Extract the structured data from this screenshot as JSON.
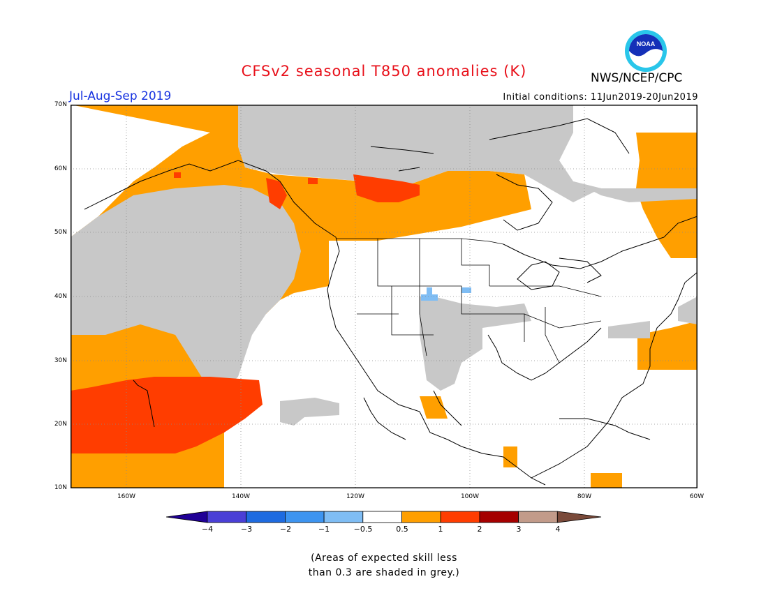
{
  "title": "CFSv2 seasonal T850 anomalies (K)",
  "agency": "NWS/NCEP/CPC",
  "logo_text": "NOAA",
  "season": "Jul-Aug-Sep 2019",
  "initial_conditions": "Initial conditions: 11Jun2019-20Jun2019",
  "lat_labels": [
    "70N",
    "60N",
    "50N",
    "40N",
    "30N",
    "20N",
    "10N"
  ],
  "lon_labels": [
    "160W",
    "140W",
    "120W",
    "100W",
    "80W",
    "60W"
  ],
  "colorbar": {
    "labels": [
      "−4",
      "−3",
      "−2",
      "−1",
      "−0.5",
      "0.5",
      "1",
      "2",
      "3",
      "4"
    ],
    "colors": [
      "#200096",
      "#4a3fd6",
      "#1e6be0",
      "#3d94f0",
      "#7fbdf4",
      "#ffffff",
      "#ff9f00",
      "#ff3d00",
      "#a50000",
      "#c29b8a",
      "#7a4a3a"
    ]
  },
  "note_lines": [
    "(Areas of expected skill less",
    "than 0.3 are shaded in grey.)"
  ],
  "colors": {
    "orange": "#ff9f00",
    "red": "#ff3d00",
    "grey": "#c8c8c8",
    "blue": "#7fbdf4"
  }
}
